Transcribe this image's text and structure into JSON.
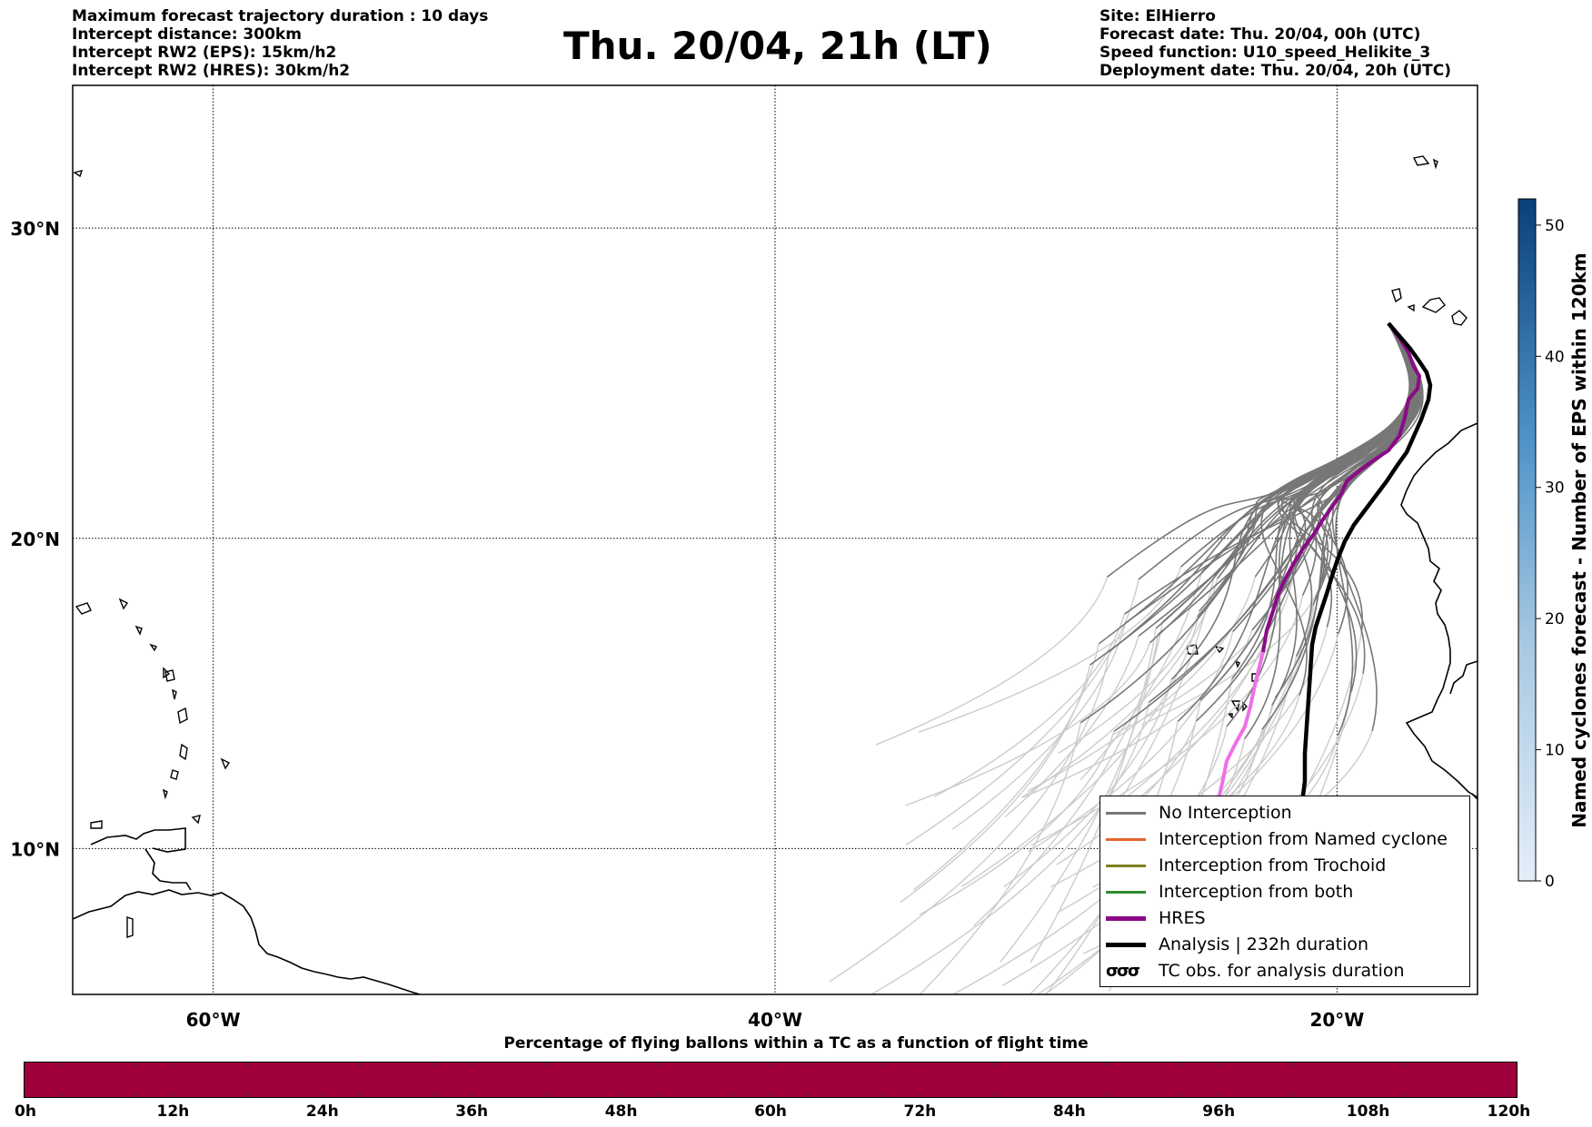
{
  "header": {
    "left_lines": [
      "Maximum forecast trajectory duration : 10 days",
      "Intercept distance: 300km",
      "Intercept RW2 (EPS):  15km/h2",
      "Intercept RW2 (HRES): 30km/h2"
    ],
    "title": "Thu. 20/04, 21h (LT)",
    "right_lines": [
      "Site: ElHierro",
      "Forecast date: Thu. 20/04, 00h (UTC)",
      "Speed function: U10_speed_Helikite_3",
      "Deployment date: Thu. 20/04, 20h (UTC)"
    ]
  },
  "map": {
    "lon_range": [
      -65,
      -15
    ],
    "lat_range": [
      5.3,
      34.6
    ],
    "lon_ticks": [
      {
        "value": -60,
        "label": "60°W"
      },
      {
        "value": -40,
        "label": "40°W"
      },
      {
        "value": -20,
        "label": "20°W"
      }
    ],
    "lat_ticks": [
      {
        "value": 30,
        "label": "30°N"
      },
      {
        "value": 20,
        "label": "20°N"
      },
      {
        "value": 10,
        "label": "10°N"
      }
    ],
    "colors": {
      "no_interception": "#777777",
      "faded_trajectory": "#cccccc",
      "named_cyclone": "#e8642c",
      "trochoid": "#808020",
      "both": "#2e8b2e",
      "hres": "#8b0a86",
      "hres_faded": "#ef6fe8",
      "analysis": "#000000"
    }
  },
  "legend": {
    "items": [
      {
        "label": "No Interception",
        "color": "#777777",
        "style": "thin"
      },
      {
        "label": "Interception from Named cyclone",
        "color": "#e8642c",
        "style": "thin"
      },
      {
        "label": "Interception from Trochoid",
        "color": "#808020",
        "style": "thin"
      },
      {
        "label": "Interception from both",
        "color": "#2e8b2e",
        "style": "thin"
      },
      {
        "label": "HRES",
        "color": "#8b0a86",
        "style": "thick"
      },
      {
        "label": "Analysis | 232h duration",
        "color": "#000000",
        "style": "thick"
      },
      {
        "label": "TC obs. for analysis duration",
        "color": "#000000",
        "style": "symbol"
      }
    ]
  },
  "colorbar": {
    "label": "Named cyclones forecast - Number of EPS within 120km",
    "ticks": [
      "0",
      "10",
      "20",
      "30",
      "40",
      "50"
    ],
    "min": 0,
    "max": 52,
    "color_low": "#e4eef9",
    "color_high": "#0a3f7c"
  },
  "progress_bar": {
    "title": "Percentage of flying ballons within a TC as a function of flight time",
    "color": "#a0003c",
    "ticks": [
      "0h",
      "12h",
      "24h",
      "36h",
      "48h",
      "60h",
      "72h",
      "84h",
      "96h",
      "108h",
      "120h"
    ]
  }
}
